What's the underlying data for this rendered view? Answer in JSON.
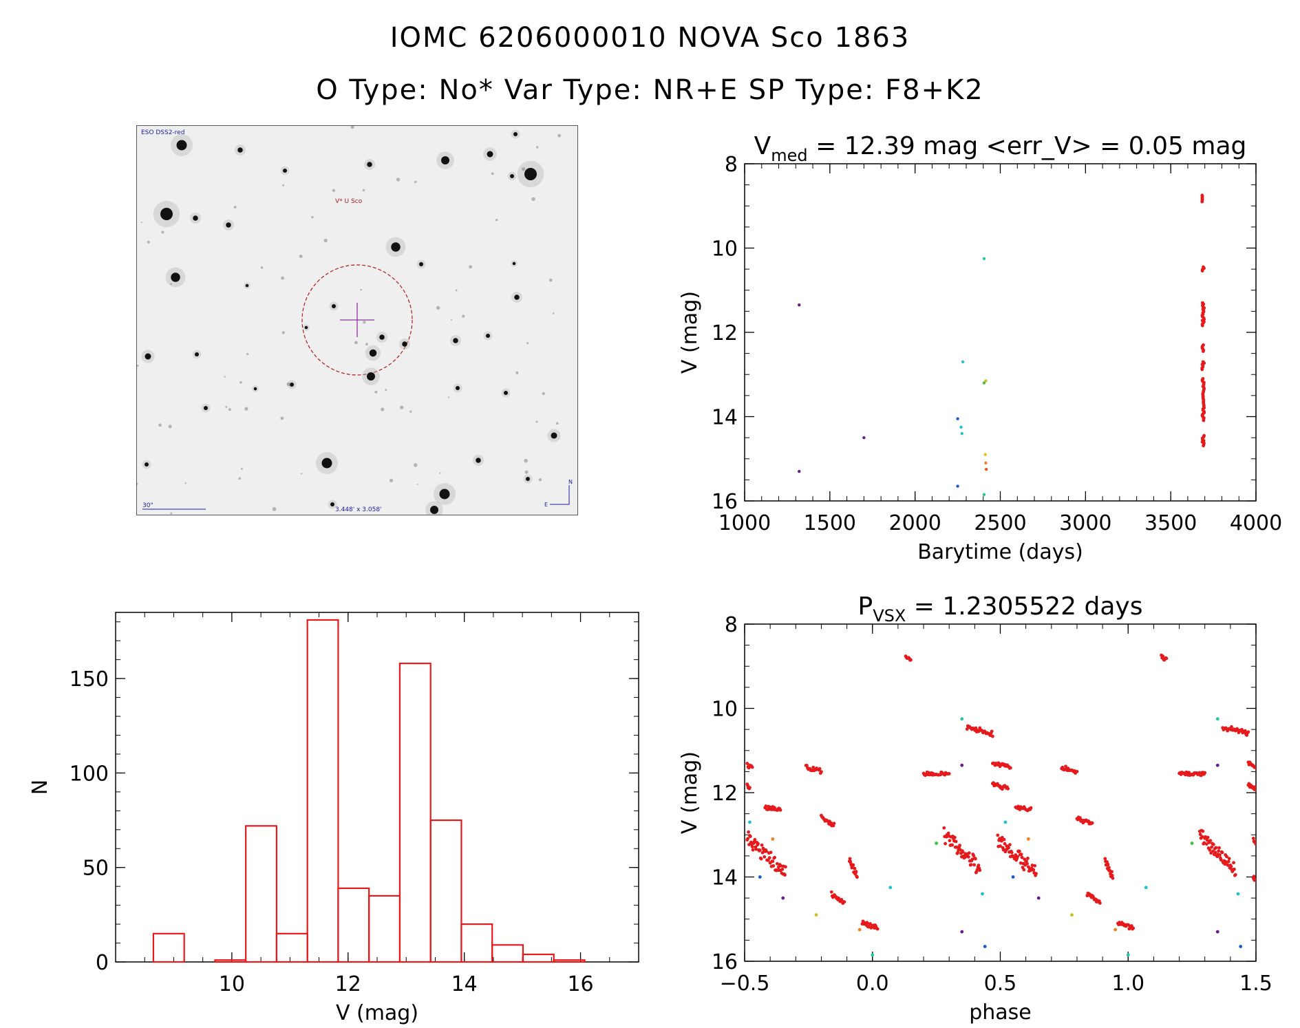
{
  "header": {
    "line1": "IOMC 6206000010    NOVA Sco 1863",
    "line2": "O Type: No*  Var Type: NR+E  SP Type: F8+K2"
  },
  "finder": {
    "survey_label": "ESO DSS2-red",
    "target_label": "V* U Sco",
    "scale_label": "30\"",
    "fov_label": "3.448' x 3.058'",
    "north_label": "N",
    "east_label": "E",
    "colors": {
      "circle": "#b01818",
      "cross": "#9030a0",
      "text": "#1a1aa0"
    }
  },
  "chart_data": [
    {
      "id": "lightcurve",
      "type": "scatter",
      "title_main": "V",
      "title_sub": "med",
      "title_rest": " = 12.39 mag <err_V> = 0.05 mag",
      "xlabel": "Barytime (days)",
      "ylabel": "V (mag)",
      "xlim": [
        1000,
        4000
      ],
      "ylim": [
        16,
        8
      ],
      "xticks": [
        1000,
        1500,
        2000,
        2500,
        3000,
        3500,
        4000
      ],
      "yticks": [
        8,
        10,
        12,
        14,
        16
      ],
      "points": [
        {
          "x": 1320,
          "y": 11.35,
          "c": "#6a1a8a"
        },
        {
          "x": 1320,
          "y": 15.3,
          "c": "#6a1a8a"
        },
        {
          "x": 1700,
          "y": 14.5,
          "c": "#6a1a8a"
        },
        {
          "x": 2250,
          "y": 14.05,
          "c": "#1a5ad0"
        },
        {
          "x": 2250,
          "y": 15.65,
          "c": "#1a5ad0"
        },
        {
          "x": 2270,
          "y": 14.25,
          "c": "#20c0d0"
        },
        {
          "x": 2275,
          "y": 14.4,
          "c": "#20c0d0"
        },
        {
          "x": 2280,
          "y": 12.7,
          "c": "#20c0d0"
        },
        {
          "x": 2405,
          "y": 10.25,
          "c": "#20c8a0"
        },
        {
          "x": 2405,
          "y": 13.2,
          "c": "#40c040"
        },
        {
          "x": 2415,
          "y": 13.15,
          "c": "#c8c020"
        },
        {
          "x": 2412,
          "y": 14.9,
          "c": "#e0c020"
        },
        {
          "x": 2415,
          "y": 15.1,
          "c": "#f08020"
        },
        {
          "x": 2418,
          "y": 15.25,
          "c": "#f05020"
        },
        {
          "x": 2405,
          "y": 15.85,
          "c": "#20c8a0"
        }
      ],
      "dense_column": {
        "x": 3690,
        "y_segments": [
          [
            8.75,
            8.9
          ],
          [
            10.45,
            10.55
          ],
          [
            11.3,
            11.85
          ],
          [
            12.3,
            12.45
          ],
          [
            12.7,
            12.9
          ],
          [
            13.1,
            14.1
          ],
          [
            14.45,
            14.7
          ]
        ],
        "color": "#e41a1c"
      }
    },
    {
      "id": "histogram",
      "type": "bar",
      "xlabel": "V (mag)",
      "ylabel": "N",
      "xlim": [
        8.0,
        17.0
      ],
      "ylim": [
        0,
        185
      ],
      "xticks": [
        10,
        12,
        14,
        16
      ],
      "yticks": [
        0,
        50,
        100,
        150
      ],
      "bin_width": 0.53,
      "bins": [
        {
          "left": 8.65,
          "count": 15
        },
        {
          "left": 9.71,
          "count": 1
        },
        {
          "left": 10.24,
          "count": 72
        },
        {
          "left": 10.77,
          "count": 15
        },
        {
          "left": 11.3,
          "count": 181
        },
        {
          "left": 11.83,
          "count": 39
        },
        {
          "left": 12.36,
          "count": 35
        },
        {
          "left": 12.89,
          "count": 158
        },
        {
          "left": 13.42,
          "count": 75
        },
        {
          "left": 13.95,
          "count": 20
        },
        {
          "left": 14.48,
          "count": 9
        },
        {
          "left": 15.01,
          "count": 4
        },
        {
          "left": 15.54,
          "count": 1
        }
      ],
      "color": "#e41a1c"
    },
    {
      "id": "phased",
      "type": "scatter",
      "title_main": "P",
      "title_sub": "VSX",
      "title_rest": " = 1.2305522 days",
      "xlabel": "phase",
      "ylabel": "V (mag)",
      "xlim": [
        -0.5,
        1.5
      ],
      "ylim": [
        16,
        8
      ],
      "xticks": [
        -0.5,
        0.0,
        0.5,
        1.0,
        1.5
      ],
      "xtick_labels": [
        "−0.5",
        "0.0",
        "0.5",
        "1.0",
        "1.5"
      ],
      "yticks": [
        8,
        10,
        12,
        14,
        16
      ],
      "yticks_labels": [
        "8",
        "10",
        "12",
        "14",
        "16"
      ],
      "red_segments": [
        {
          "x0": 0.13,
          "x1": 0.15,
          "y0": 8.75,
          "y1": 8.85
        },
        {
          "x0": 0.37,
          "x1": 0.47,
          "y0": 10.45,
          "y1": 10.6
        },
        {
          "x0": -0.49,
          "x1": -0.47,
          "y0": 11.35,
          "y1": 11.4
        },
        {
          "x0": -0.26,
          "x1": -0.2,
          "y0": 11.4,
          "y1": 11.5
        },
        {
          "x0": 0.2,
          "x1": 0.3,
          "y0": 11.55,
          "y1": 11.55
        },
        {
          "x0": 0.47,
          "x1": 0.54,
          "y0": 11.3,
          "y1": 11.4
        },
        {
          "x0": 0.74,
          "x1": 0.8,
          "y0": 11.4,
          "y1": 11.5
        },
        {
          "x0": -0.49,
          "x1": -0.48,
          "y0": 11.8,
          "y1": 11.9
        },
        {
          "x0": 0.47,
          "x1": 0.53,
          "y0": 11.8,
          "y1": 11.9
        },
        {
          "x0": -0.42,
          "x1": -0.36,
          "y0": 12.35,
          "y1": 12.4
        },
        {
          "x0": 0.56,
          "x1": 0.62,
          "y0": 12.35,
          "y1": 12.4
        },
        {
          "x0": -0.2,
          "x1": -0.15,
          "y0": 12.6,
          "y1": 12.75
        },
        {
          "x0": 0.8,
          "x1": 0.86,
          "y0": 12.6,
          "y1": 12.75
        },
        {
          "x0": 0.28,
          "x1": 0.42,
          "y0": 13.0,
          "y1": 13.8
        },
        {
          "x0": -0.49,
          "x1": -0.34,
          "y0": 13.1,
          "y1": 13.9
        },
        {
          "x0": 0.49,
          "x1": 0.64,
          "y0": 13.1,
          "y1": 13.9
        },
        {
          "x0": -0.09,
          "x1": -0.06,
          "y0": 13.6,
          "y1": 14.0
        },
        {
          "x0": -0.16,
          "x1": -0.11,
          "y0": 14.4,
          "y1": 14.6
        },
        {
          "x0": 0.84,
          "x1": 0.89,
          "y0": 14.4,
          "y1": 14.6
        },
        {
          "x0": 0.91,
          "x1": 0.94,
          "y0": 13.6,
          "y1": 14.0
        },
        {
          "x0": -0.04,
          "x1": 0.02,
          "y0": 15.1,
          "y1": 15.2
        },
        {
          "x0": 0.96,
          "x1": 1.02,
          "y0": 15.1,
          "y1": 15.2
        },
        {
          "x0": 1.13,
          "x1": 1.15,
          "y0": 8.75,
          "y1": 8.85
        },
        {
          "x0": 1.37,
          "x1": 1.47,
          "y0": 10.45,
          "y1": 10.6
        },
        {
          "x0": 1.2,
          "x1": 1.3,
          "y0": 11.55,
          "y1": 11.55
        },
        {
          "x0": 1.47,
          "x1": 1.5,
          "y0": 11.3,
          "y1": 11.4
        },
        {
          "x0": 1.47,
          "x1": 1.5,
          "y0": 11.8,
          "y1": 11.9
        },
        {
          "x0": 1.28,
          "x1": 1.42,
          "y0": 13.0,
          "y1": 13.8
        },
        {
          "x0": 1.49,
          "x1": 1.5,
          "y0": 13.1,
          "y1": 13.2
        },
        {
          "x0": 1.49,
          "x1": 1.5,
          "y0": 14.0,
          "y1": 14.1
        }
      ],
      "colored_points": [
        {
          "x": 0.35,
          "y": 11.35,
          "c": "#6a1a8a"
        },
        {
          "x": 1.35,
          "y": 11.35,
          "c": "#6a1a8a"
        },
        {
          "x": -0.35,
          "y": 14.5,
          "c": "#6a1a8a"
        },
        {
          "x": 0.65,
          "y": 14.5,
          "c": "#6a1a8a"
        },
        {
          "x": 0.35,
          "y": 15.3,
          "c": "#6a1a8a"
        },
        {
          "x": 1.35,
          "y": 15.3,
          "c": "#6a1a8a"
        },
        {
          "x": 0.35,
          "y": 10.25,
          "c": "#20c8a0"
        },
        {
          "x": 1.35,
          "y": 10.25,
          "c": "#20c8a0"
        },
        {
          "x": 0.0,
          "y": 15.85,
          "c": "#20c8a0"
        },
        {
          "x": 1.0,
          "y": 15.85,
          "c": "#20c8a0"
        },
        {
          "x": -0.48,
          "y": 12.7,
          "c": "#20c0d0"
        },
        {
          "x": 0.52,
          "y": 12.7,
          "c": "#20c0d0"
        },
        {
          "x": 0.07,
          "y": 14.25,
          "c": "#20c0d0"
        },
        {
          "x": 1.07,
          "y": 14.25,
          "c": "#20c0d0"
        },
        {
          "x": 0.43,
          "y": 14.4,
          "c": "#20c0d0"
        },
        {
          "x": 1.43,
          "y": 14.4,
          "c": "#20c0d0"
        },
        {
          "x": 0.44,
          "y": 15.65,
          "c": "#1a5ad0"
        },
        {
          "x": 1.44,
          "y": 15.65,
          "c": "#1a5ad0"
        },
        {
          "x": -0.44,
          "y": 14.0,
          "c": "#1a5ad0"
        },
        {
          "x": 0.55,
          "y": 14.0,
          "c": "#1a5ad0"
        },
        {
          "x": 0.25,
          "y": 13.2,
          "c": "#40c040"
        },
        {
          "x": 1.25,
          "y": 13.2,
          "c": "#40c040"
        },
        {
          "x": -0.22,
          "y": 14.9,
          "c": "#c8c020"
        },
        {
          "x": 0.78,
          "y": 14.9,
          "c": "#c8c020"
        },
        {
          "x": -0.39,
          "y": 13.1,
          "c": "#f08020"
        },
        {
          "x": 0.61,
          "y": 13.1,
          "c": "#f08020"
        },
        {
          "x": -0.05,
          "y": 15.25,
          "c": "#f08020"
        },
        {
          "x": 0.95,
          "y": 15.25,
          "c": "#f08020"
        }
      ],
      "color": "#e41a1c"
    }
  ]
}
